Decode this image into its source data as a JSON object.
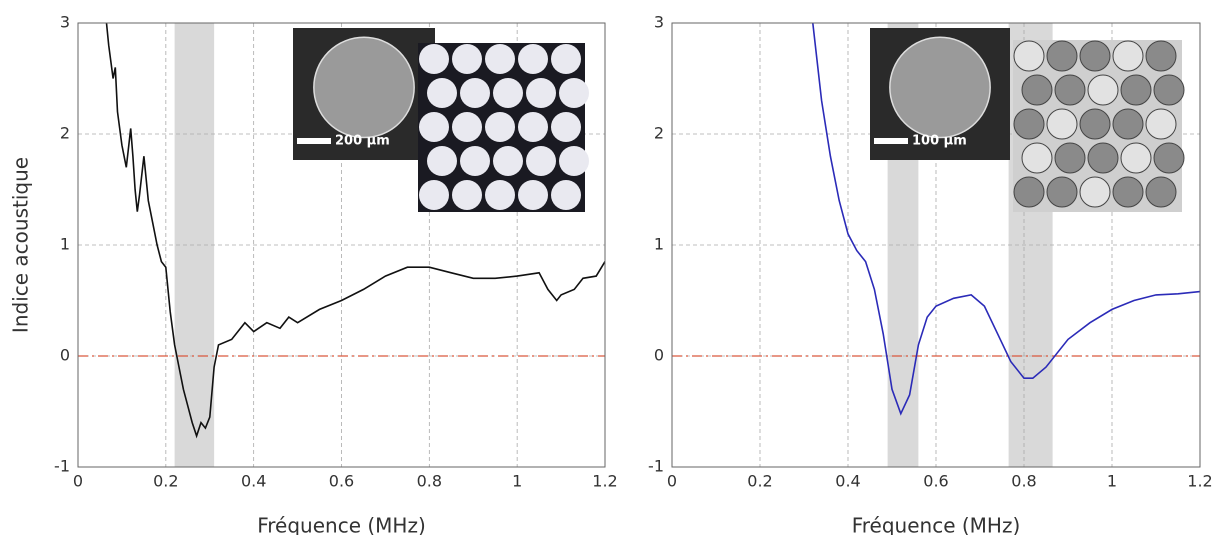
{
  "chart_data": [
    {
      "type": "line",
      "xlabel": "Fréquence (MHz)",
      "ylabel": "Indice acoustique",
      "xlim": [
        0,
        1.2
      ],
      "ylim": [
        -1,
        3
      ],
      "xticks": [
        0,
        0.2,
        0.4,
        0.6,
        0.8,
        1,
        1.2
      ],
      "yticks": [
        -1,
        0,
        1,
        2,
        3
      ],
      "grid": true,
      "reference_line": {
        "y": 0,
        "color": "#d9593f"
      },
      "bands": [
        [
          0.22,
          0.31
        ]
      ],
      "band_color": "#d9d9d9",
      "inset_scale_label": "200 µm",
      "x": [
        0.065,
        0.07,
        0.08,
        0.085,
        0.09,
        0.1,
        0.11,
        0.12,
        0.125,
        0.13,
        0.135,
        0.14,
        0.15,
        0.16,
        0.17,
        0.18,
        0.19,
        0.2,
        0.21,
        0.22,
        0.23,
        0.24,
        0.25,
        0.26,
        0.27,
        0.28,
        0.29,
        0.3,
        0.31,
        0.32,
        0.35,
        0.38,
        0.4,
        0.43,
        0.46,
        0.48,
        0.5,
        0.55,
        0.6,
        0.65,
        0.7,
        0.75,
        0.8,
        0.85,
        0.9,
        0.95,
        1.0,
        1.05,
        1.07,
        1.09,
        1.1,
        1.13,
        1.15,
        1.18,
        1.2
      ],
      "series": [
        {
          "color": "#111111",
          "values": [
            3,
            2.8,
            2.5,
            2.6,
            2.2,
            1.9,
            1.7,
            2.05,
            1.8,
            1.5,
            1.3,
            1.45,
            1.8,
            1.4,
            1.2,
            1.0,
            0.85,
            0.8,
            0.4,
            0.1,
            -0.1,
            -0.3,
            -0.45,
            -0.6,
            -0.72,
            -0.6,
            -0.65,
            -0.55,
            -0.1,
            0.1,
            0.15,
            0.3,
            0.22,
            0.3,
            0.25,
            0.35,
            0.3,
            0.42,
            0.5,
            0.6,
            0.72,
            0.8,
            0.8,
            0.75,
            0.7,
            0.7,
            0.72,
            0.75,
            0.6,
            0.5,
            0.55,
            0.6,
            0.7,
            0.72,
            0.85
          ]
        }
      ]
    },
    {
      "type": "line",
      "xlabel": "Fréquence (MHz)",
      "xlim": [
        0,
        1.2
      ],
      "ylim": [
        -1,
        3
      ],
      "xticks": [
        0,
        0.2,
        0.4,
        0.6,
        0.8,
        1,
        1.2
      ],
      "yticks": [
        -1,
        0,
        1,
        2,
        3
      ],
      "grid": true,
      "reference_line": {
        "y": 0,
        "color": "#d9593f"
      },
      "bands": [
        [
          0.49,
          0.56
        ],
        [
          0.765,
          0.865
        ]
      ],
      "band_color": "#d9d9d9",
      "inset_scale_label": "100 µm",
      "x": [
        0.32,
        0.34,
        0.36,
        0.38,
        0.4,
        0.42,
        0.44,
        0.46,
        0.48,
        0.5,
        0.52,
        0.54,
        0.56,
        0.58,
        0.6,
        0.64,
        0.68,
        0.71,
        0.74,
        0.77,
        0.8,
        0.82,
        0.85,
        0.9,
        0.95,
        1.0,
        1.05,
        1.1,
        1.15,
        1.2
      ],
      "series": [
        {
          "color": "#2b2bb8",
          "values": [
            3,
            2.3,
            1.8,
            1.4,
            1.1,
            0.95,
            0.85,
            0.6,
            0.2,
            -0.3,
            -0.52,
            -0.35,
            0.1,
            0.35,
            0.45,
            0.52,
            0.55,
            0.45,
            0.2,
            -0.05,
            -0.2,
            -0.2,
            -0.1,
            0.15,
            0.3,
            0.42,
            0.5,
            0.55,
            0.56,
            0.58
          ]
        }
      ]
    }
  ]
}
